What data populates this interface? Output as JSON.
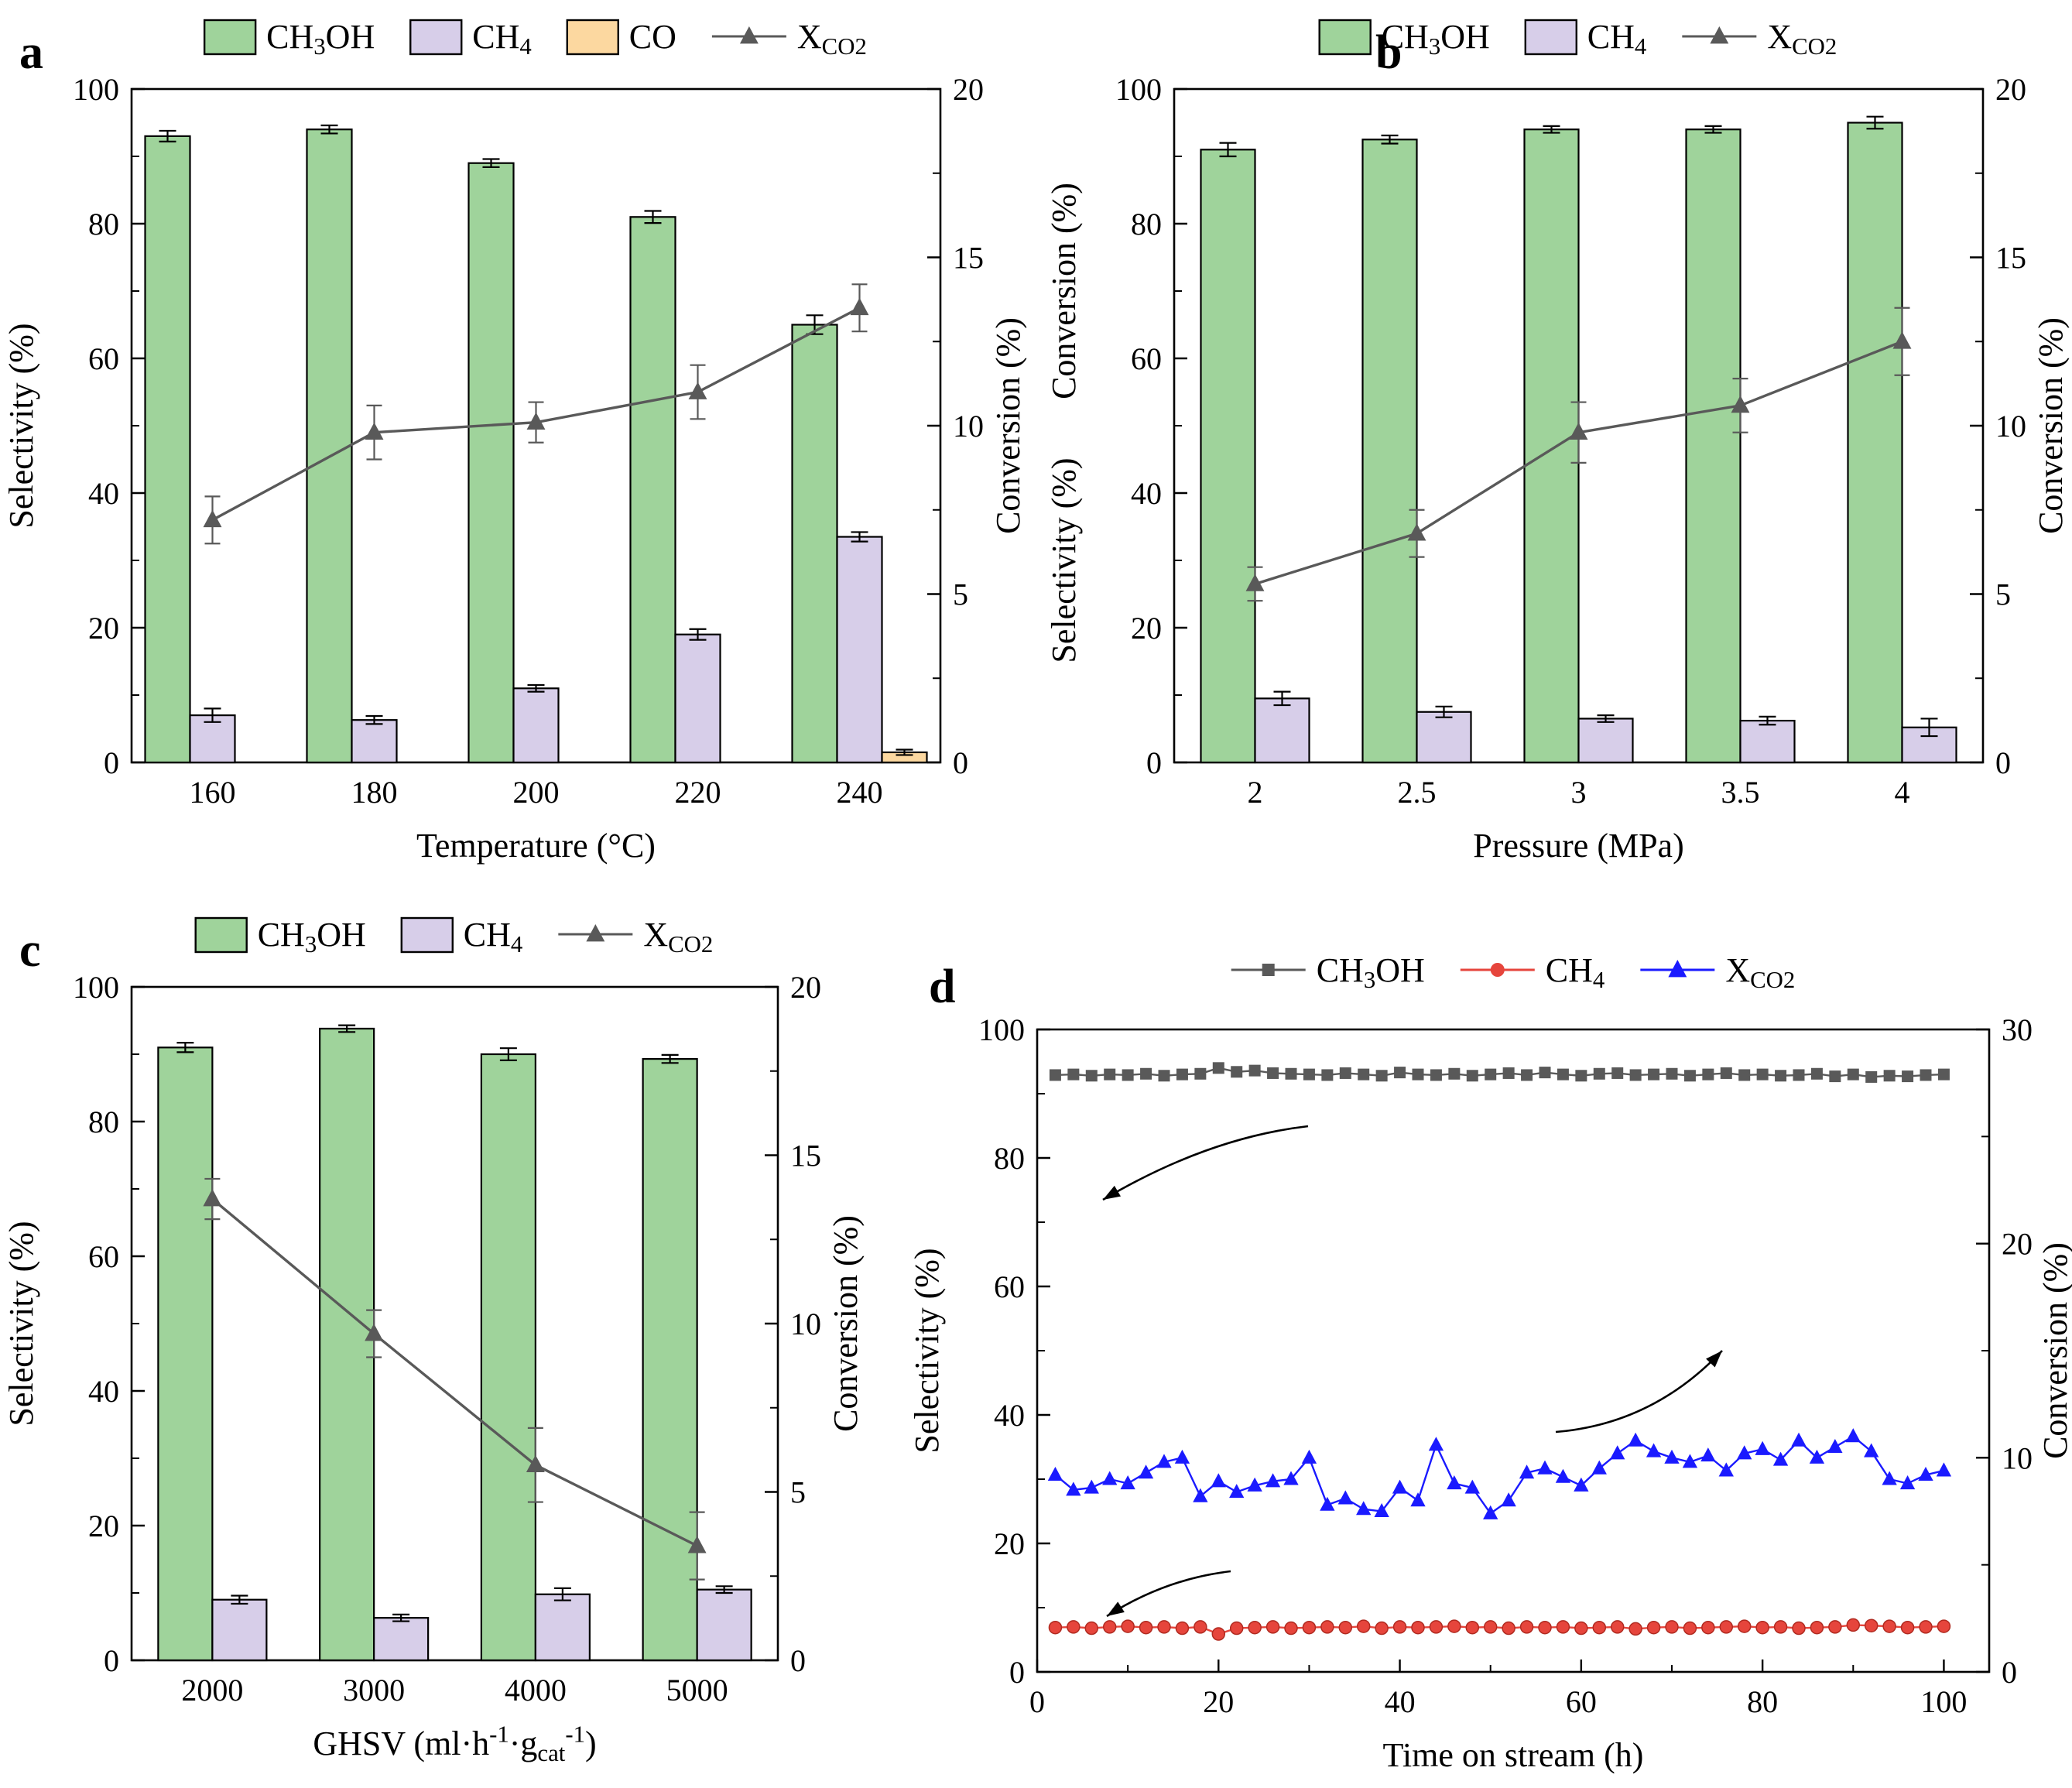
{
  "figure": {
    "background": "#ffffff"
  },
  "colors": {
    "green": "#9fd39b",
    "purple": "#d7cee9",
    "orange": "#fcd8a0",
    "gray": "#595959",
    "red": "#e6453c",
    "blue": "#1a1aff",
    "axis": "#000000"
  },
  "chart_data": [
    {
      "id": "a",
      "type": "bar-line",
      "panel_label": "a",
      "legend": [
        {
          "swatch": "bar",
          "color": "green",
          "label": "CH~3~OH"
        },
        {
          "swatch": "bar",
          "color": "purple",
          "label": "CH~4~"
        },
        {
          "swatch": "bar",
          "color": "orange",
          "label": "CO"
        },
        {
          "swatch": "line-triangle",
          "color": "gray",
          "label": "X~CO2~"
        }
      ],
      "x": {
        "label": "Temperature (°C)",
        "categories": [
          "160",
          "180",
          "200",
          "220",
          "240"
        ]
      },
      "y_left": {
        "label": "Selectivity (%)",
        "min": 0,
        "max": 100,
        "major": 20,
        "minor": 10
      },
      "y_right": {
        "label": "Conversion (%)",
        "min": 0,
        "max": 20,
        "major": 5,
        "minor": 2.5
      },
      "bar_series": [
        {
          "name": "CH3OH",
          "color": "green",
          "values": [
            93,
            94,
            89,
            81,
            65
          ],
          "errors": [
            0.8,
            0.6,
            0.6,
            0.9,
            1.4
          ]
        },
        {
          "name": "CH4",
          "color": "purple",
          "values": [
            7,
            6.3,
            11,
            19,
            33.5
          ],
          "errors": [
            1.0,
            0.6,
            0.5,
            0.8,
            0.7
          ]
        },
        {
          "name": "CO",
          "color": "orange",
          "values": [
            0,
            0,
            0,
            0,
            1.5
          ],
          "errors": [
            0,
            0,
            0,
            0,
            0.4
          ]
        }
      ],
      "line_series": {
        "name": "XCO2",
        "axis": "right",
        "values": [
          7.2,
          9.8,
          10.1,
          11.0,
          13.5
        ],
        "errors": [
          0.7,
          0.8,
          0.6,
          0.8,
          0.7
        ]
      }
    },
    {
      "id": "b",
      "type": "bar-line",
      "panel_label": "b",
      "legend": [
        {
          "swatch": "bar",
          "color": "green",
          "label": "CH~3~OH"
        },
        {
          "swatch": "bar",
          "color": "purple",
          "label": "CH~4~"
        },
        {
          "swatch": "line-triangle",
          "color": "gray",
          "label": "X~CO2~"
        }
      ],
      "x": {
        "label": "Pressure (MPa)",
        "categories": [
          "2",
          "2.5",
          "3",
          "3.5",
          "4"
        ]
      },
      "y_left": {
        "labels": [
          "Conversion (%)",
          "Selectivity (%)"
        ],
        "min": 0,
        "max": 100,
        "major": 20,
        "minor": 10
      },
      "y_right": {
        "label": "Conversion (%)",
        "min": 0,
        "max": 20,
        "major": 5,
        "minor": 2.5
      },
      "bar_series": [
        {
          "name": "CH3OH",
          "color": "green",
          "values": [
            91,
            92.5,
            94,
            94,
            95
          ],
          "errors": [
            1.0,
            0.6,
            0.5,
            0.5,
            0.9
          ]
        },
        {
          "name": "CH4",
          "color": "purple",
          "values": [
            9.5,
            7.5,
            6.5,
            6.2,
            5.2
          ],
          "errors": [
            1.0,
            0.8,
            0.5,
            0.6,
            1.3
          ]
        }
      ],
      "line_series": {
        "name": "XCO2",
        "axis": "right",
        "values": [
          5.3,
          6.8,
          9.8,
          10.6,
          12.5
        ],
        "errors": [
          0.5,
          0.7,
          0.9,
          0.8,
          1.0
        ]
      }
    },
    {
      "id": "c",
      "type": "bar-line",
      "panel_label": "c",
      "legend": [
        {
          "swatch": "bar",
          "color": "green",
          "label": "CH~3~OH"
        },
        {
          "swatch": "bar",
          "color": "purple",
          "label": "CH~4~"
        },
        {
          "swatch": "line-triangle",
          "color": "gray",
          "label": "X~CO2~"
        }
      ],
      "x": {
        "label": "GHSV (ml·h^-1^·g~cat~^-1^)",
        "categories": [
          "2000",
          "3000",
          "4000",
          "5000"
        ]
      },
      "y_left": {
        "label": "Selectivity (%)",
        "min": 0,
        "max": 100,
        "major": 20,
        "minor": 10
      },
      "y_right": {
        "label": "Conversion (%)",
        "min": 0,
        "max": 20,
        "major": 5,
        "minor": 2.5
      },
      "bar_series": [
        {
          "name": "CH3OH",
          "color": "green",
          "values": [
            91,
            93.8,
            90,
            89.3
          ],
          "errors": [
            0.7,
            0.5,
            0.9,
            0.6
          ]
        },
        {
          "name": "CH4",
          "color": "purple",
          "values": [
            9,
            6.3,
            9.8,
            10.5
          ],
          "errors": [
            0.6,
            0.5,
            0.9,
            0.5
          ]
        }
      ],
      "line_series": {
        "name": "XCO2",
        "axis": "right",
        "values": [
          13.7,
          9.7,
          5.8,
          3.4
        ],
        "errors": [
          0.6,
          0.7,
          1.1,
          1.0
        ]
      }
    },
    {
      "id": "d",
      "type": "scatter",
      "panel_label": "d",
      "legend": [
        {
          "swatch": "line-square",
          "color": "gray",
          "label": "CH~3~OH"
        },
        {
          "swatch": "line-circle",
          "color": "red",
          "label": "CH~4~"
        },
        {
          "swatch": "line-triangle",
          "color": "blue",
          "label": "X~CO2~"
        }
      ],
      "x": {
        "label": "Time on stream (h)",
        "min": 0,
        "max": 105,
        "major": 20,
        "minor": 10,
        "tick_max": 100
      },
      "y_left": {
        "label": "Selectivity (%)",
        "min": 0,
        "max": 100,
        "major": 20,
        "minor": 10
      },
      "y_right": {
        "label": "Conversion (%)",
        "min": 0,
        "max": 30,
        "major": 10,
        "minor": 5
      },
      "x_hours": [
        2,
        4,
        6,
        8,
        10,
        12,
        14,
        16,
        18,
        20,
        22,
        24,
        26,
        28,
        30,
        32,
        34,
        36,
        38,
        40,
        42,
        44,
        46,
        48,
        50,
        52,
        54,
        56,
        58,
        60,
        62,
        64,
        66,
        68,
        70,
        72,
        74,
        76,
        78,
        80,
        82,
        84,
        86,
        88,
        90,
        92,
        94,
        96,
        98,
        100
      ],
      "series": [
        {
          "name": "CH3OH",
          "axis": "left",
          "marker": "square",
          "color": "gray",
          "values": [
            92.9,
            93.0,
            92.8,
            93.0,
            92.9,
            93.1,
            92.8,
            93.0,
            93.1,
            94.0,
            93.4,
            93.6,
            93.2,
            93.1,
            93.0,
            92.9,
            93.2,
            93.0,
            92.8,
            93.3,
            93.0,
            92.9,
            93.1,
            92.8,
            93.0,
            93.2,
            92.9,
            93.3,
            93.0,
            92.8,
            93.1,
            93.2,
            92.9,
            93.0,
            93.1,
            92.8,
            93.0,
            93.2,
            92.9,
            93.0,
            92.8,
            92.9,
            93.1,
            92.7,
            93.0,
            92.6,
            92.8,
            92.7,
            92.9,
            93.0
          ]
        },
        {
          "name": "CH4",
          "axis": "left",
          "marker": "circle",
          "color": "red",
          "values": [
            6.9,
            7.0,
            6.8,
            7.0,
            7.1,
            6.9,
            7.0,
            6.8,
            7.0,
            5.9,
            6.8,
            6.9,
            7.0,
            6.8,
            6.9,
            7.0,
            6.9,
            7.1,
            6.8,
            7.0,
            6.9,
            7.0,
            7.1,
            6.9,
            7.0,
            6.8,
            7.0,
            6.9,
            7.0,
            6.8,
            6.9,
            7.0,
            6.7,
            6.9,
            7.0,
            6.8,
            6.9,
            7.0,
            7.1,
            6.9,
            7.0,
            6.8,
            6.9,
            7.0,
            7.3,
            7.2,
            7.1,
            6.9,
            7.0,
            7.1
          ]
        },
        {
          "name": "XCO2",
          "axis": "right",
          "marker": "triangle",
          "color": "blue",
          "values": [
            9.2,
            8.5,
            8.6,
            9.0,
            8.8,
            9.3,
            9.8,
            10.0,
            8.2,
            8.9,
            8.4,
            8.7,
            8.9,
            9.0,
            10.0,
            7.8,
            8.1,
            7.6,
            7.5,
            8.6,
            8.0,
            10.6,
            8.8,
            8.6,
            7.4,
            8.0,
            9.3,
            9.5,
            9.1,
            8.7,
            9.5,
            10.2,
            10.8,
            10.3,
            10.0,
            9.8,
            10.1,
            9.4,
            10.2,
            10.4,
            9.9,
            10.8,
            10.0,
            10.5,
            11.0,
            10.3,
            9.0,
            8.8,
            9.2,
            9.4
          ]
        }
      ],
      "annotations": [
        {
          "name": "arrow-ch3oh-to-left-axis",
          "points_to": "left-axis",
          "from": [
            530,
            295
          ],
          "ctrl": [
            400,
            310
          ],
          "to": [
            265,
            390
          ]
        },
        {
          "name": "arrow-xco2-to-right-axis",
          "points_to": "right-axis",
          "from": [
            850,
            690
          ],
          "ctrl": [
            975,
            680
          ],
          "to": [
            1065,
            585
          ]
        },
        {
          "name": "arrow-ch4-to-left-axis",
          "points_to": "left-axis",
          "from": [
            430,
            870
          ],
          "ctrl": [
            345,
            880
          ],
          "to": [
            270,
            928
          ]
        }
      ]
    }
  ]
}
